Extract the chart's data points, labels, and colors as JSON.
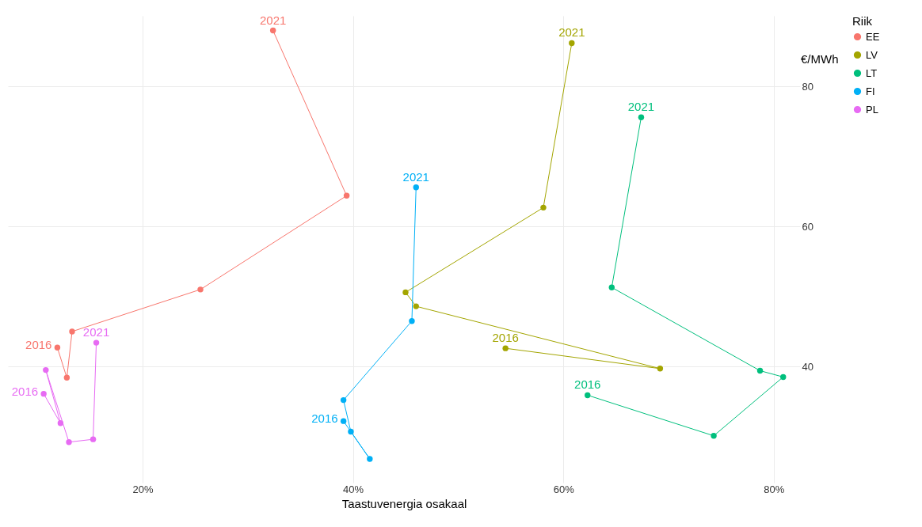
{
  "chart_data": {
    "type": "line",
    "xlabel": "Taastuvenergia osakaal",
    "ylabel": "€/MWh",
    "legend_title": "Riik",
    "legend": "right",
    "grid": true,
    "marker": "circle",
    "xlim": [
      7.2,
      82.5
    ],
    "ylim": [
      23.4,
      90.1
    ],
    "xticks": [
      {
        "value": 20,
        "label": "20%"
      },
      {
        "value": 40,
        "label": "40%"
      },
      {
        "value": 60,
        "label": "60%"
      },
      {
        "value": 80,
        "label": "80%"
      }
    ],
    "yticks": [
      40,
      60,
      80
    ],
    "series": [
      {
        "name": "EE",
        "color": "#f8766d",
        "x": [
          11.9,
          12.8,
          13.3,
          25.5,
          39.4,
          32.4
        ],
        "values": [
          42.7,
          38.4,
          45.0,
          51.0,
          64.4,
          88.0
        ]
      },
      {
        "name": "LV",
        "color": "#a3a500",
        "x": [
          54.5,
          69.2,
          46.0,
          45.0,
          58.1,
          60.8
        ],
        "values": [
          42.6,
          39.7,
          48.6,
          50.6,
          62.7,
          86.2
        ]
      },
      {
        "name": "LT",
        "color": "#00bf7d",
        "x": [
          62.3,
          74.3,
          80.9,
          78.7,
          64.6,
          67.4
        ],
        "values": [
          35.9,
          30.1,
          38.5,
          39.4,
          51.3,
          75.6
        ]
      },
      {
        "name": "FI",
        "color": "#00b0f6",
        "x": [
          39.1,
          41.6,
          39.8,
          39.1,
          45.6,
          46.0
        ],
        "values": [
          32.2,
          26.8,
          30.7,
          35.2,
          46.5,
          65.6
        ]
      },
      {
        "name": "PL",
        "color": "#e76bf3",
        "x": [
          10.6,
          12.2,
          10.8,
          13.0,
          15.3,
          15.6
        ],
        "values": [
          36.1,
          31.9,
          39.5,
          29.2,
          29.6,
          43.4
        ]
      }
    ],
    "annotations": [
      {
        "text": "2016",
        "x": 11.9,
        "y": 42.7
      },
      {
        "text": "2021",
        "x": 32.4,
        "y": 88.0
      },
      {
        "text": "2016",
        "x": 54.5,
        "y": 42.6
      },
      {
        "text": "2021",
        "x": 60.8,
        "y": 86.2
      },
      {
        "text": "2016",
        "x": 62.3,
        "y": 35.9
      },
      {
        "text": "2021",
        "x": 67.4,
        "y": 75.6
      },
      {
        "text": "2016",
        "x": 39.1,
        "y": 32.2
      },
      {
        "text": "2021",
        "x": 46.0,
        "y": 65.6
      },
      {
        "text": "2016",
        "x": 10.6,
        "y": 36.1
      },
      {
        "text": "2021",
        "x": 15.6,
        "y": 43.4
      }
    ]
  }
}
